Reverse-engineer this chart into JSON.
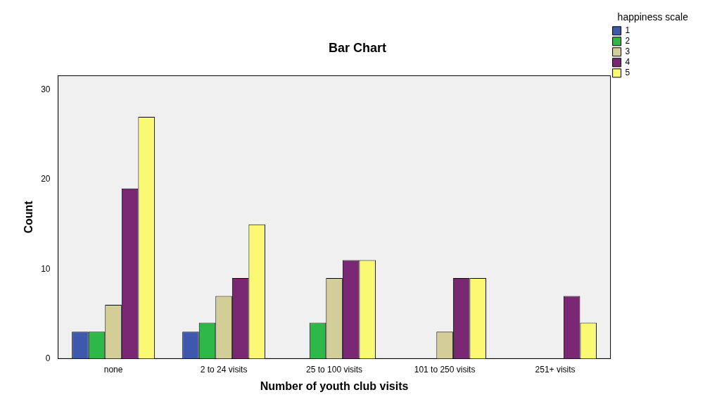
{
  "chart_data": {
    "type": "bar",
    "title": "Bar Chart",
    "xlabel": "Number of youth club visits",
    "ylabel": "Count",
    "legend_title": "happiness scale",
    "categories": [
      "none",
      "2 to 24 visits",
      "25 to 100 visits",
      "101 to 250 visits",
      "251+ visits"
    ],
    "series": [
      {
        "name": "1",
        "color": "#3e58ac",
        "values": [
          3,
          3,
          null,
          null,
          null
        ]
      },
      {
        "name": "2",
        "color": "#2eb848",
        "values": [
          3,
          4,
          4,
          null,
          null
        ]
      },
      {
        "name": "3",
        "color": "#d3ce97",
        "values": [
          6,
          7,
          9,
          3,
          null
        ]
      },
      {
        "name": "4",
        "color": "#7a2873",
        "values": [
          19,
          9,
          11,
          9,
          7
        ]
      },
      {
        "name": "5",
        "color": "#fbf873",
        "values": [
          27,
          15,
          11,
          9,
          4
        ]
      }
    ],
    "ylim": [
      0,
      31.6
    ],
    "yticks": [
      0,
      10,
      20,
      30
    ],
    "grid": false,
    "legend": "top right"
  }
}
